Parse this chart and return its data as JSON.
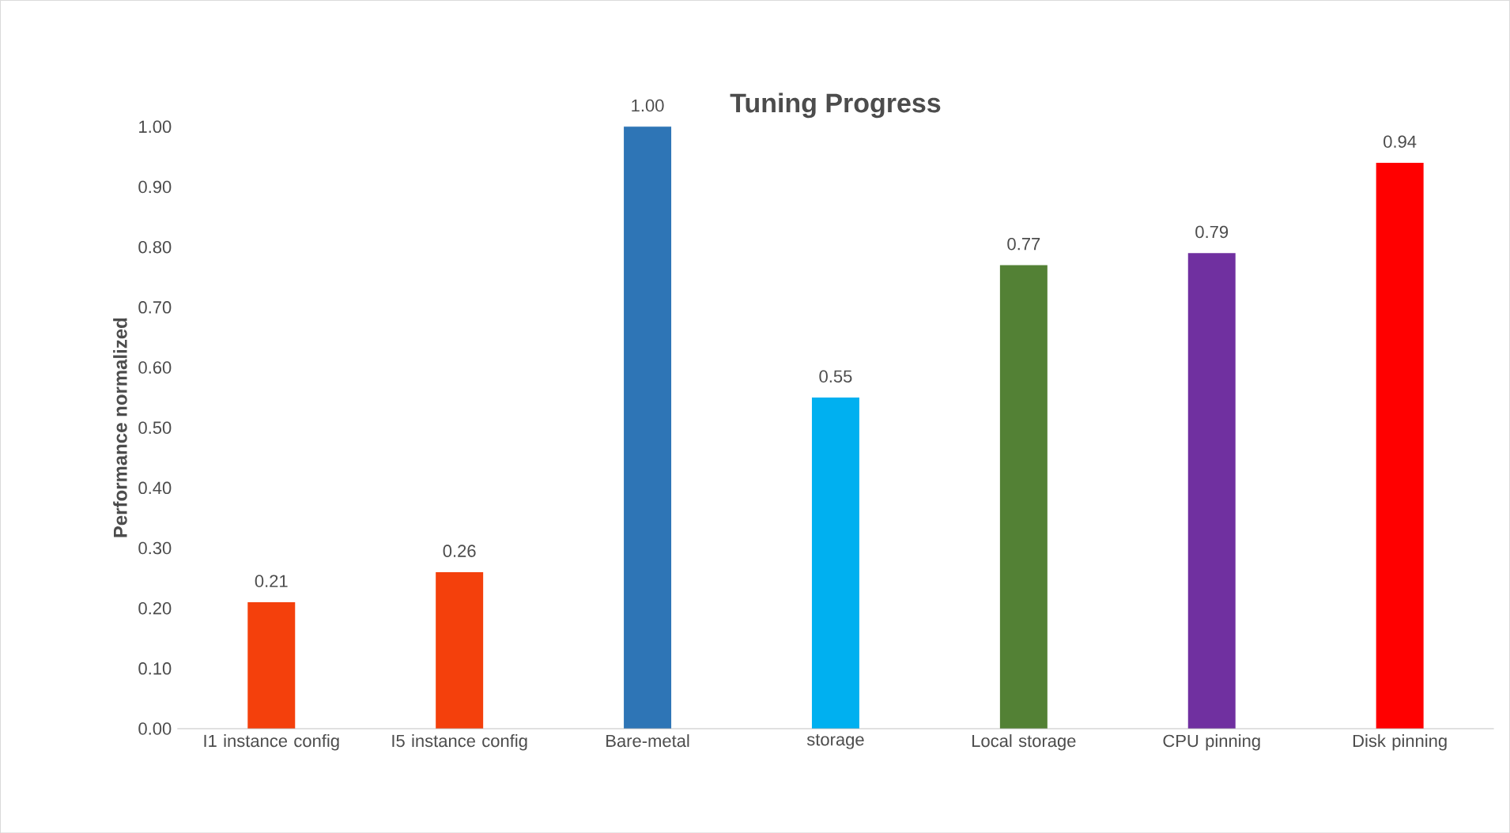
{
  "chart_data": {
    "type": "bar",
    "title": "Tuning Progress",
    "ylabel": "Performance normalized",
    "categories": [
      "I1 instance config",
      "I5 instance config",
      "Bare-metal",
      "storage",
      "Local storage",
      "CPU pinning",
      "Disk pinning"
    ],
    "values": [
      0.21,
      0.26,
      1.0,
      0.55,
      0.77,
      0.79,
      0.94
    ],
    "colors": [
      "#f4400c",
      "#f4400c",
      "#2e75b6",
      "#00b0f0",
      "#538135",
      "#7030a0",
      "#ff0000"
    ],
    "ylim": [
      0,
      1.0
    ],
    "yticks": [
      {
        "value": 0,
        "label": "0.00"
      },
      {
        "value": 0.1,
        "label": "0.10"
      },
      {
        "value": 0.2,
        "label": "0.20"
      },
      {
        "value": 0.3,
        "label": "0.30"
      },
      {
        "value": 0.4,
        "label": "0.40"
      },
      {
        "value": 0.5,
        "label": "0.50"
      },
      {
        "value": 0.6,
        "label": "0.60"
      },
      {
        "value": 0.7,
        "label": "0.70"
      },
      {
        "value": 0.8,
        "label": "0.80"
      },
      {
        "value": 0.9,
        "label": "0.90"
      },
      {
        "value": 1.0,
        "label": "1.00"
      }
    ],
    "value_labels": [
      "0.21",
      "0.26",
      "1.00",
      "0.55",
      "0.77",
      "0.79",
      "0.94"
    ],
    "grid": false
  }
}
